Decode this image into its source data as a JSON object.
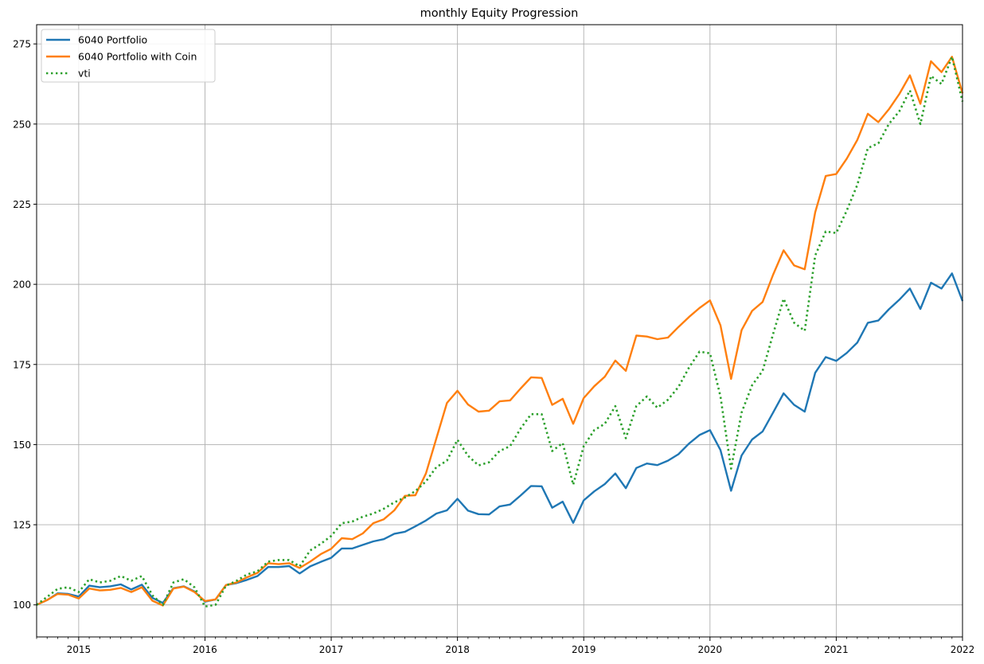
{
  "chart_data": {
    "type": "line",
    "title": "monthly Equity Progression",
    "xlabel": "",
    "ylabel": "",
    "grid": true,
    "legend_position": "upper-left",
    "x_start": "2014-09",
    "x_end": "2022-01",
    "xlim": [
      "2014-09",
      "2022-01"
    ],
    "ylim": [
      90,
      281
    ],
    "x_ticks": [
      "2015",
      "2016",
      "2017",
      "2018",
      "2019",
      "2020",
      "2021",
      "2022"
    ],
    "y_ticks": [
      100,
      125,
      150,
      175,
      200,
      225,
      250,
      275
    ],
    "series": [
      {
        "name": "6040 Portfolio",
        "color": "#1f77b4",
        "style": "solid",
        "values": [
          100.0,
          101.5,
          103.6,
          103.4,
          102.6,
          106.0,
          105.5,
          105.8,
          106.4,
          104.8,
          106.3,
          102.2,
          100.6,
          105.2,
          105.8,
          104.2,
          101.0,
          101.7,
          106.2,
          106.8,
          107.8,
          109.0,
          111.8,
          111.8,
          112.1,
          109.8,
          112.0,
          113.4,
          114.7,
          117.6,
          117.6,
          118.7,
          119.8,
          120.5,
          122.2,
          122.8,
          124.5,
          126.3,
          128.5,
          129.5,
          133.1,
          129.4,
          128.3,
          128.2,
          130.7,
          131.3,
          134.1,
          137.1,
          137.0,
          130.3,
          132.2,
          125.6,
          132.6,
          135.4,
          137.7,
          141.0,
          136.4,
          142.7,
          144.1,
          143.6,
          145.0,
          147.0,
          150.3,
          153.0,
          154.5,
          148.3,
          135.6,
          146.6,
          151.6,
          154.1,
          160.0,
          166.0,
          162.4,
          160.3,
          172.4,
          177.3,
          176.1,
          178.6,
          181.8,
          188.0,
          188.7,
          192.2,
          195.2,
          198.7,
          192.3,
          200.5,
          198.7,
          203.4,
          194.8
        ]
      },
      {
        "name": "6040 Portfolio with Coin",
        "color": "#ff7f0e",
        "style": "solid",
        "values": [
          100.0,
          101.5,
          103.4,
          103.2,
          102.0,
          105.1,
          104.5,
          104.7,
          105.3,
          104.0,
          105.5,
          101.3,
          99.8,
          105.1,
          105.7,
          104.0,
          101.2,
          101.7,
          106.2,
          107.0,
          108.6,
          110.0,
          113.0,
          112.7,
          113.0,
          111.5,
          113.5,
          115.8,
          117.5,
          120.8,
          120.5,
          122.3,
          125.5,
          126.7,
          129.5,
          134.0,
          134.2,
          141.0,
          152.0,
          163.0,
          166.8,
          162.5,
          160.3,
          160.6,
          163.5,
          163.8,
          167.5,
          171.0,
          170.8,
          162.4,
          164.3,
          156.5,
          164.5,
          168.2,
          171.2,
          176.2,
          173.0,
          184.0,
          183.7,
          182.9,
          183.4,
          186.7,
          189.8,
          192.6,
          195.0,
          187.2,
          170.5,
          185.7,
          191.7,
          194.5,
          203.0,
          210.6,
          205.9,
          204.7,
          222.5,
          233.8,
          234.4,
          239.2,
          245.0,
          253.2,
          250.6,
          254.6,
          259.4,
          265.2,
          256.3,
          269.6,
          266.2,
          271.0,
          259.6
        ]
      },
      {
        "name": "vti",
        "color": "#2ca02c",
        "style": "dotted",
        "values": [
          100.0,
          102.5,
          105.0,
          105.5,
          104.0,
          108.0,
          107.0,
          107.5,
          109.0,
          107.5,
          109.0,
          103.0,
          100.0,
          107.0,
          108.0,
          105.5,
          99.5,
          100.0,
          106.0,
          107.5,
          109.5,
          110.5,
          113.5,
          114.0,
          114.0,
          112.0,
          117.0,
          119.0,
          121.5,
          125.5,
          126.0,
          127.5,
          128.5,
          130.0,
          132.0,
          133.5,
          135.5,
          138.5,
          143.0,
          145.0,
          151.5,
          146.5,
          143.5,
          144.5,
          148.0,
          149.5,
          155.0,
          159.5,
          159.5,
          148.0,
          150.5,
          137.5,
          149.5,
          154.5,
          156.5,
          162.0,
          152.0,
          162.0,
          165.0,
          161.5,
          164.0,
          168.0,
          174.0,
          179.0,
          178.5,
          165.0,
          142.5,
          160.0,
          168.5,
          173.0,
          184.5,
          195.5,
          188.0,
          185.5,
          209.0,
          216.5,
          216.0,
          223.0,
          231.0,
          242.5,
          244.0,
          250.0,
          254.0,
          260.5,
          250.0,
          265.0,
          262.5,
          271.0,
          257.0
        ]
      }
    ]
  }
}
